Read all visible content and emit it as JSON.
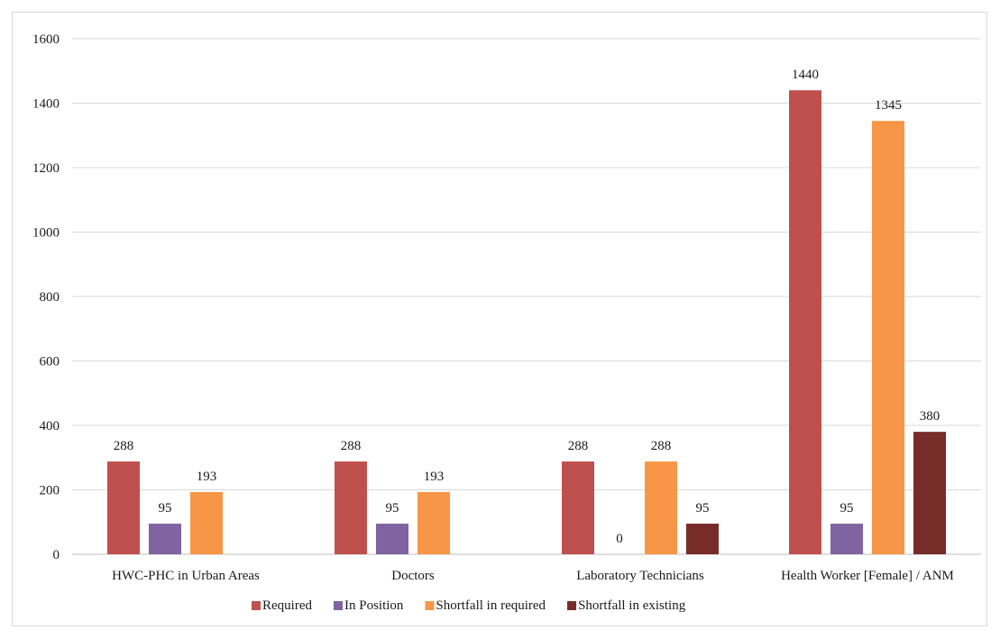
{
  "chart_data": {
    "type": "bar",
    "title": "",
    "xlabel": "",
    "ylabel": "",
    "ylim": [
      0,
      1600
    ],
    "yticks": [
      0,
      200,
      400,
      600,
      800,
      1000,
      1200,
      1400,
      1600
    ],
    "grid": true,
    "legend_position": "bottom",
    "categories": [
      "HWC-PHC in Urban Areas",
      "Doctors",
      "Laboratory Technicians",
      "Health Worker [Female] / ANM"
    ],
    "series": [
      {
        "name": "Required",
        "color": "#c0504d",
        "values": [
          288,
          288,
          288,
          1440
        ],
        "labels": [
          "288",
          "288",
          "288",
          "1440"
        ]
      },
      {
        "name": "In Position",
        "color": "#8064a2",
        "values": [
          95,
          95,
          0,
          95
        ],
        "labels": [
          "95",
          "95",
          "0",
          "95"
        ]
      },
      {
        "name": "Shortfall in required",
        "color": "#f79646",
        "values": [
          193,
          193,
          288,
          1345
        ],
        "labels": [
          "193",
          "193",
          "288",
          "1345"
        ]
      },
      {
        "name": "Shortfall in existing",
        "color": "#772c2a",
        "values": [
          null,
          null,
          95,
          380
        ],
        "labels": [
          "",
          "",
          "95",
          "380"
        ]
      }
    ]
  }
}
